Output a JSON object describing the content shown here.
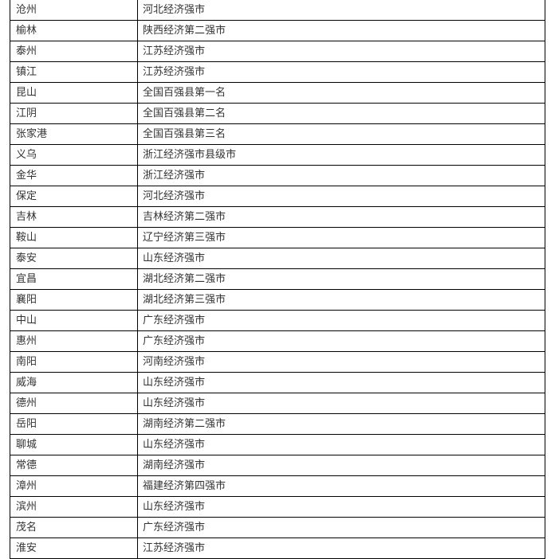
{
  "rows": [
    {
      "city": "沧州",
      "note": "河北经济强市"
    },
    {
      "city": "榆林",
      "note": "陕西经济第二强市"
    },
    {
      "city": "泰州",
      "note": "江苏经济强市"
    },
    {
      "city": "镇江",
      "note": "江苏经济强市"
    },
    {
      "city": "昆山",
      "note": "全国百强县第一名"
    },
    {
      "city": "江阴",
      "note": "全国百强县第二名"
    },
    {
      "city": "张家港",
      "note": "全国百强县第三名"
    },
    {
      "city": "义乌",
      "note": "浙江经济强市县级市"
    },
    {
      "city": "金华",
      "note": "浙江经济强市"
    },
    {
      "city": "保定",
      "note": "河北经济强市"
    },
    {
      "city": "吉林",
      "note": "吉林经济第二强市"
    },
    {
      "city": "鞍山",
      "note": "辽宁经济第三强市"
    },
    {
      "city": "泰安",
      "note": "山东经济强市"
    },
    {
      "city": "宜昌",
      "note": "湖北经济第二强市"
    },
    {
      "city": "襄阳",
      "note": "湖北经济第三强市"
    },
    {
      "city": "中山",
      "note": "广东经济强市"
    },
    {
      "city": "惠州",
      "note": "广东经济强市"
    },
    {
      "city": "南阳",
      "note": "河南经济强市"
    },
    {
      "city": "威海",
      "note": "山东经济强市"
    },
    {
      "city": "德州",
      "note": "山东经济强市"
    },
    {
      "city": "岳阳",
      "note": "湖南经济第二强市"
    },
    {
      "city": "聊城",
      "note": "山东经济强市"
    },
    {
      "city": "常德",
      "note": "湖南经济强市"
    },
    {
      "city": "漳州",
      "note": "福建经济第四强市"
    },
    {
      "city": "滨州",
      "note": "山东经济强市"
    },
    {
      "city": "茂名",
      "note": "广东经济强市"
    },
    {
      "city": "淮安",
      "note": "江苏经济强市"
    }
  ]
}
